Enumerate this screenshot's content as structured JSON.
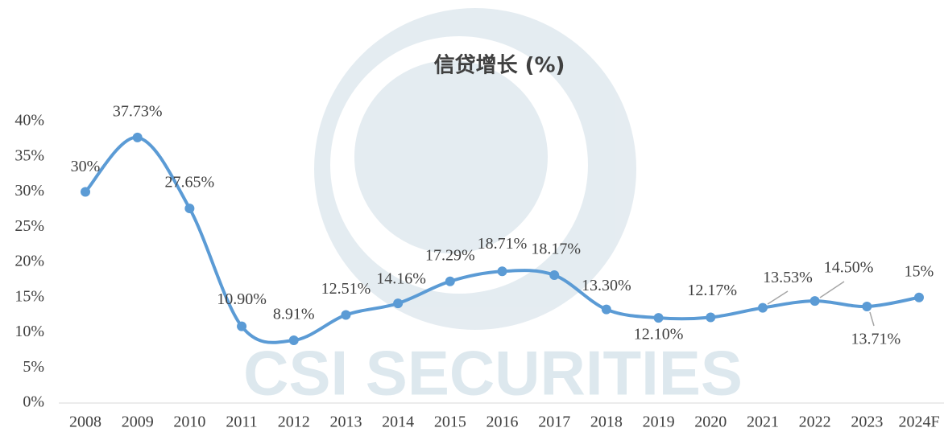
{
  "chart_data": {
    "type": "line",
    "title": "信贷增长 (%)",
    "watermark": "CSI SECURITIES",
    "categories": [
      "2008",
      "2009",
      "2010",
      "2011",
      "2012",
      "2013",
      "2014",
      "2015",
      "2016",
      "2017",
      "2018",
      "2019",
      "2020",
      "2021",
      "2022",
      "2023",
      "2024F"
    ],
    "series": [
      {
        "name": "信贷增长",
        "color": "#5b9bd5",
        "values": [
          30,
          37.73,
          27.65,
          10.9,
          8.91,
          12.51,
          14.16,
          17.29,
          18.71,
          18.17,
          13.3,
          12.1,
          12.17,
          13.53,
          14.5,
          13.71,
          15
        ],
        "value_labels": [
          "30%",
          "37.73%",
          "27.65%",
          "10.90%",
          "8.91%",
          "12.51%",
          "14.16%",
          "17.29%",
          "18.71%",
          "18.17%",
          "13.30%",
          "12.10%",
          "12.17%",
          "13.53%",
          "14.50%",
          "13.71%",
          "15%"
        ]
      }
    ],
    "ylim": [
      0,
      40
    ],
    "yticks": [
      {
        "value": 0,
        "label": "0%"
      },
      {
        "value": 5,
        "label": "5%"
      },
      {
        "value": 10,
        "label": "10%"
      },
      {
        "value": 15,
        "label": "15%"
      },
      {
        "value": 20,
        "label": "20%"
      },
      {
        "value": 25,
        "label": "25%"
      },
      {
        "value": 30,
        "label": "30%"
      },
      {
        "value": 35,
        "label": "35%"
      },
      {
        "value": 40,
        "label": "40%"
      }
    ],
    "smooth": true
  }
}
